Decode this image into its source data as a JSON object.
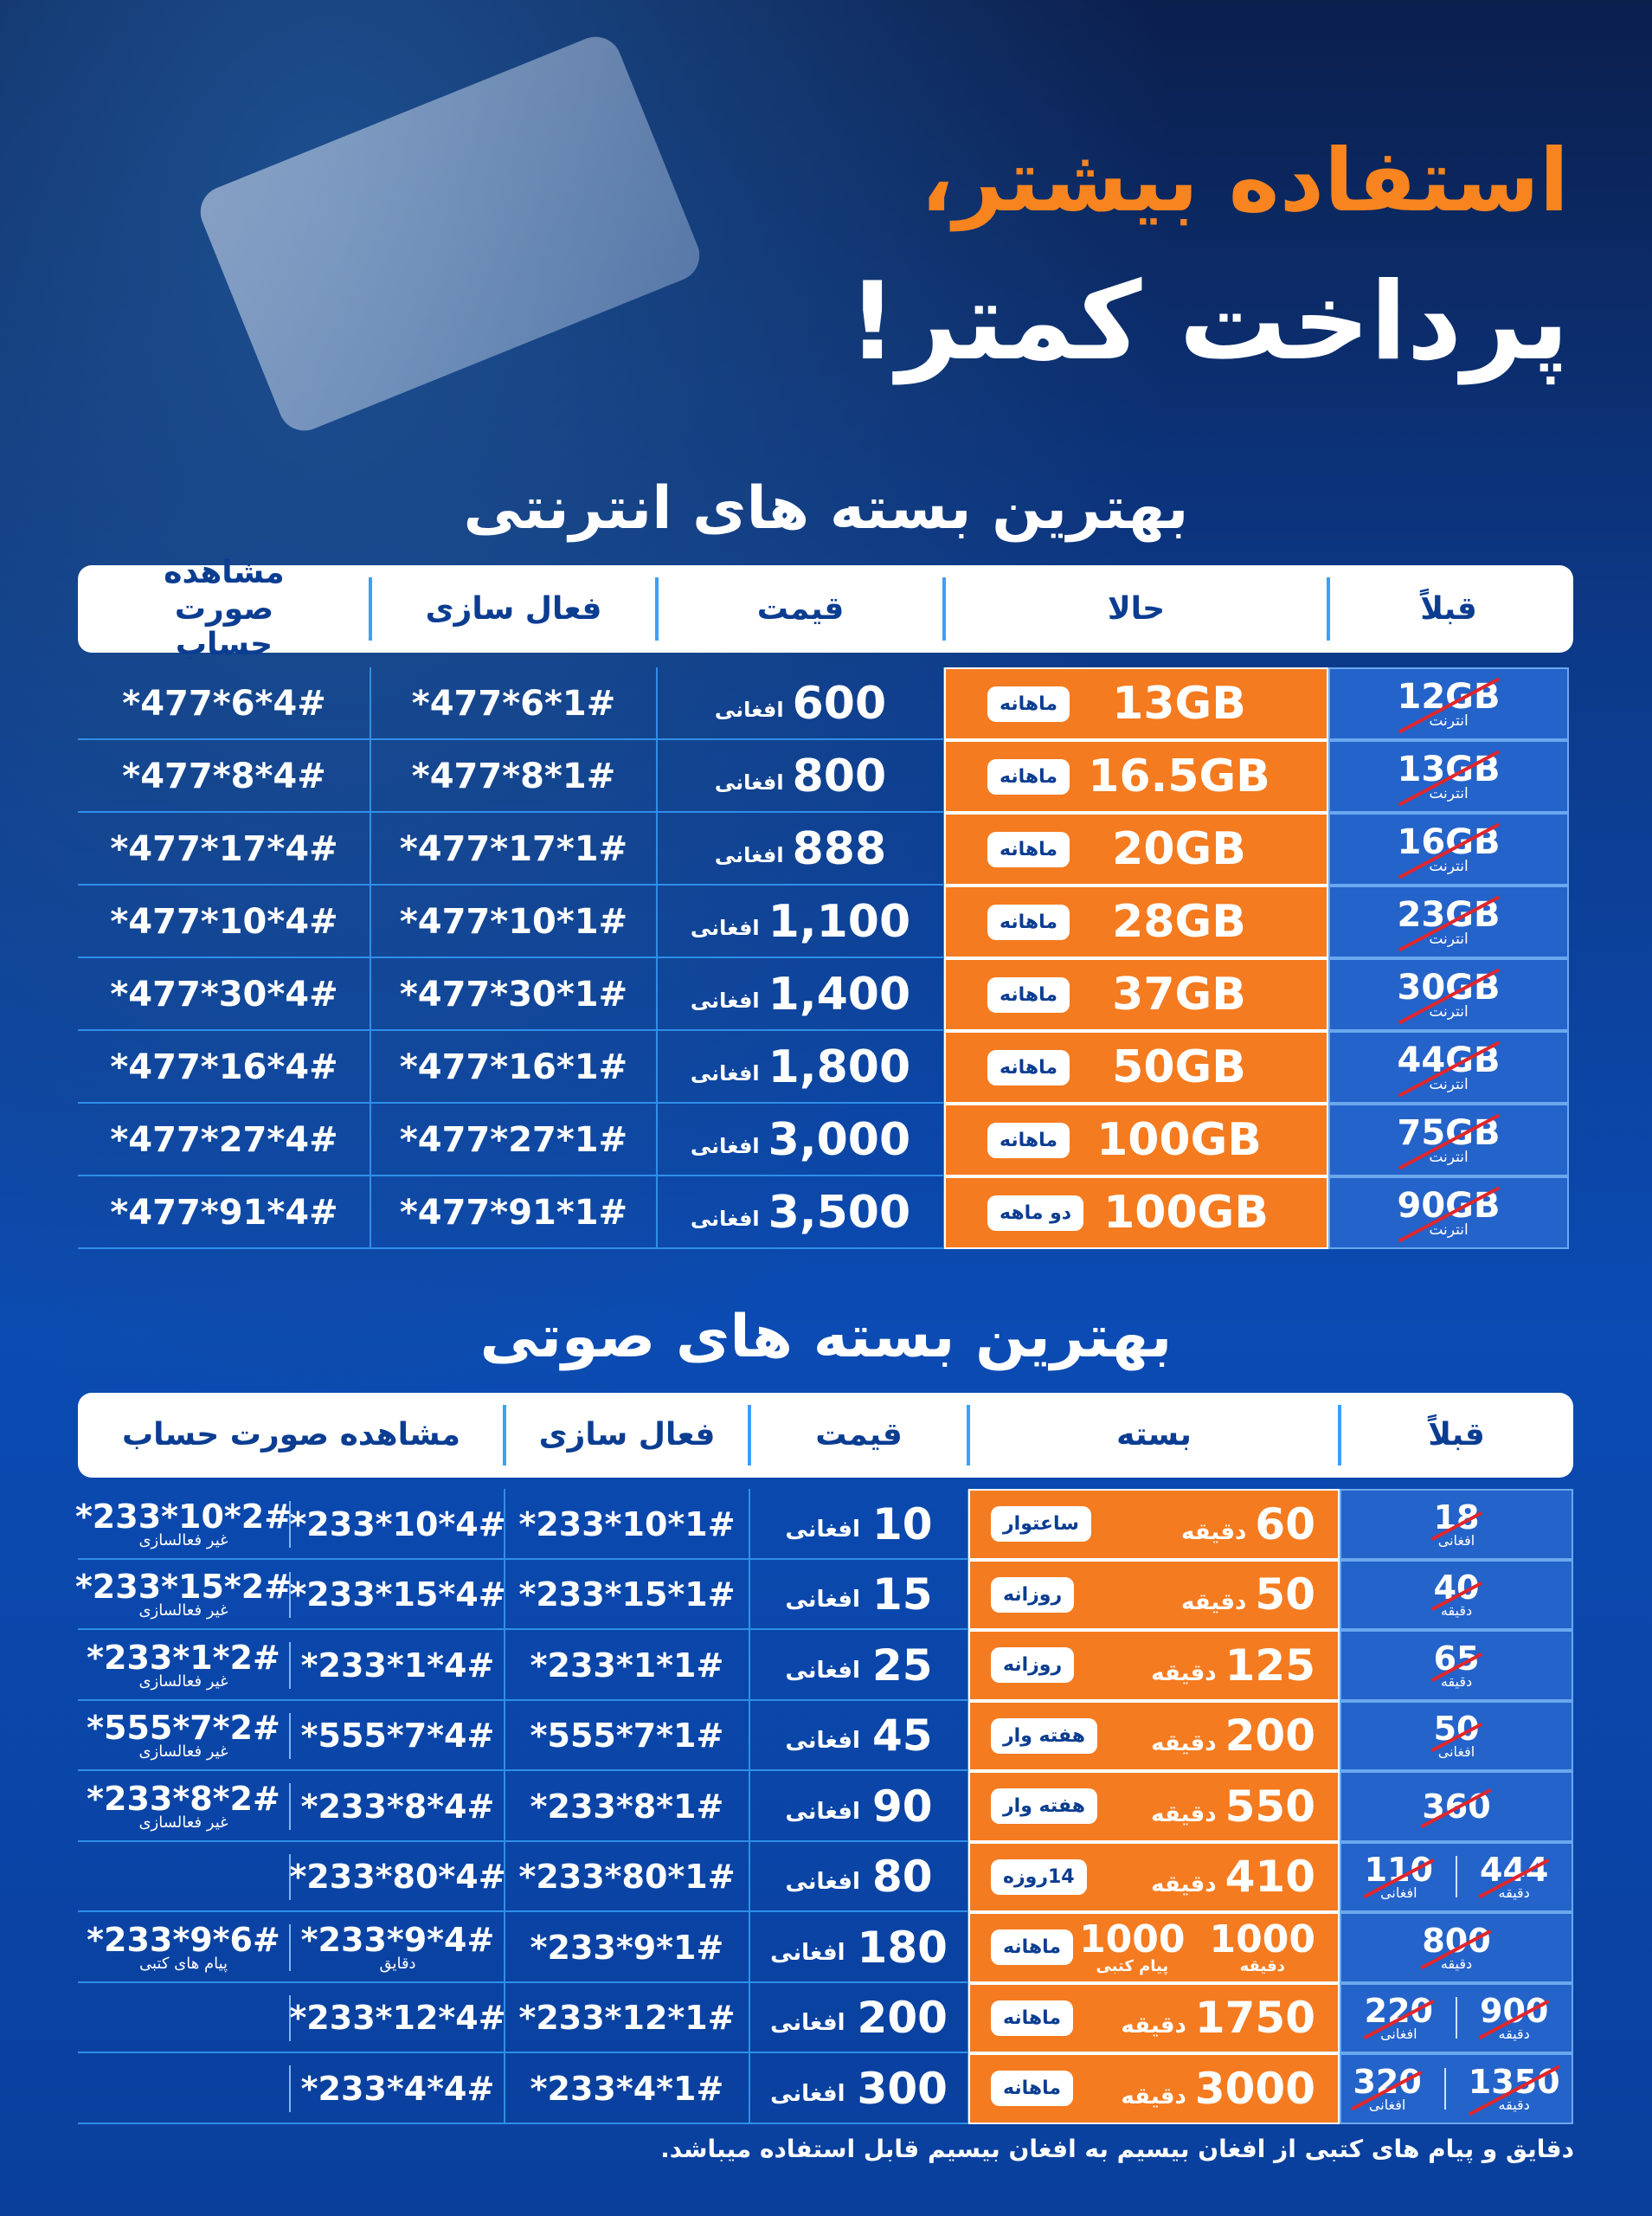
{
  "header": {
    "title_line1": "استفاده بیشتر،",
    "title_line2": "پرداخت کمتر!"
  },
  "internet": {
    "title": "بهترین بسته های انترنتی",
    "columns": [
      "قبلاً",
      "حالا",
      "قیمت",
      "فعال سازی",
      "مشاهده صورت حساب"
    ],
    "rows": [
      {
        "before": "12GB",
        "before_note": "انترنت",
        "now": "13GB",
        "period": "ماهانه",
        "price": "600",
        "currency": "افغانی",
        "activate": "*477*6*1#",
        "balance": "*477*6*4#"
      },
      {
        "before": "13GB",
        "before_note": "انترنت",
        "now": "16.5GB",
        "period": "ماهانه",
        "price": "800",
        "currency": "افغانی",
        "activate": "*477*8*1#",
        "balance": "*477*8*4#"
      },
      {
        "before": "16GB",
        "before_note": "انترنت",
        "now": "20GB",
        "period": "ماهانه",
        "price": "888",
        "currency": "افغانی",
        "activate": "*477*17*1#",
        "balance": "*477*17*4#"
      },
      {
        "before": "23GB",
        "before_note": "انترنت",
        "now": "28GB",
        "period": "ماهانه",
        "price": "1,100",
        "currency": "افغانی",
        "activate": "*477*10*1#",
        "balance": "*477*10*4#"
      },
      {
        "before": "30GB",
        "before_note": "انترنت",
        "now": "37GB",
        "period": "ماهانه",
        "price": "1,400",
        "currency": "افغانی",
        "activate": "*477*30*1#",
        "balance": "*477*30*4#"
      },
      {
        "before": "44GB",
        "before_note": "انترنت",
        "now": "50GB",
        "period": "ماهانه",
        "price": "1,800",
        "currency": "افغانی",
        "activate": "*477*16*1#",
        "balance": "*477*16*4#"
      },
      {
        "before": "75GB",
        "before_note": "انترنت",
        "now": "100GB",
        "period": "ماهانه",
        "price": "3,000",
        "currency": "افغانی",
        "activate": "*477*27*1#",
        "balance": "*477*27*4#"
      },
      {
        "before": "90GB",
        "before_note": "انترنت",
        "now": "100GB",
        "period": "دو ماهه",
        "price": "3,500",
        "currency": "افغانی",
        "activate": "*477*91*1#",
        "balance": "*477*91*4#"
      }
    ]
  },
  "voice": {
    "title": "بهترین بسته های صوتی",
    "columns": [
      "قبلاً",
      "بسته",
      "قیمت",
      "فعال سازی",
      "مشاهده صورت حساب"
    ],
    "rows": [
      {
        "before": [
          {
            "value": "18",
            "unit": "افغانی"
          }
        ],
        "package": [
          {
            "value": "60",
            "unit": "دقیقه"
          }
        ],
        "period": "ساعتوار",
        "price": "10",
        "currency": "افغانی",
        "activate": "*233*10*1#",
        "balance": {
          "code": "*233*10*4#"
        },
        "extra": {
          "code": "*233*10*2#",
          "note": "غیر فعالسازی"
        }
      },
      {
        "before": [
          {
            "value": "40",
            "unit": "دقیقه"
          }
        ],
        "package": [
          {
            "value": "50",
            "unit": "دقیقه"
          }
        ],
        "period": "روزانه",
        "price": "15",
        "currency": "افغانی",
        "activate": "*233*15*1#",
        "balance": {
          "code": "*233*15*4#"
        },
        "extra": {
          "code": "*233*15*2#",
          "note": "غیر فعالسازی"
        }
      },
      {
        "before": [
          {
            "value": "65",
            "unit": "دقیقه"
          }
        ],
        "package": [
          {
            "value": "125",
            "unit": "دقیقه"
          }
        ],
        "period": "روزانه",
        "price": "25",
        "currency": "افغانی",
        "activate": "*233*1*1#",
        "balance": {
          "code": "*233*1*4#"
        },
        "extra": {
          "code": "*233*1*2#",
          "note": "غیر فعالسازی"
        }
      },
      {
        "before": [
          {
            "value": "50",
            "unit": "افغانی"
          }
        ],
        "package": [
          {
            "value": "200",
            "unit": "دقیقه"
          }
        ],
        "period": "هفته وار",
        "price": "45",
        "currency": "افغانی",
        "activate": "*555*7*1#",
        "balance": {
          "code": "*555*7*4#"
        },
        "extra": {
          "code": "*555*7*2#",
          "note": "غیر فعالسازی"
        }
      },
      {
        "before": [
          {
            "value": "360"
          }
        ],
        "package": [
          {
            "value": "550",
            "unit": "دقیقه"
          }
        ],
        "period": "هفته وار",
        "price": "90",
        "currency": "افغانی",
        "activate": "*233*8*1#",
        "balance": {
          "code": "*233*8*4#"
        },
        "extra": {
          "code": "*233*8*2#",
          "note": "غیر فعالسازی"
        }
      },
      {
        "before": [
          {
            "value": "444",
            "unit": "دقیقه"
          },
          {
            "value": "110",
            "unit": "افغانی"
          }
        ],
        "package": [
          {
            "value": "410",
            "unit": "دقیقه"
          }
        ],
        "period": "14روزه",
        "price": "80",
        "currency": "افغانی",
        "activate": "*233*80*1#",
        "balance": {
          "code": "*233*80*4#"
        }
      },
      {
        "before": [
          {
            "value": "800",
            "unit": "دقیقه"
          }
        ],
        "package": [
          {
            "value": "1000",
            "unit": "دقیقه"
          },
          {
            "value": "1000",
            "unit": "پیام کتبی"
          }
        ],
        "period": "ماهانه",
        "price": "180",
        "currency": "افغانی",
        "activate": "*233*9*1#",
        "balance": {
          "code": "*233*9*4#",
          "note": "دقایق"
        },
        "extra": {
          "code": "*233*9*6#",
          "note": "پیام های کتبی"
        }
      },
      {
        "before": [
          {
            "value": "900",
            "unit": "دقیقه"
          },
          {
            "value": "220",
            "unit": "افغانی"
          }
        ],
        "package": [
          {
            "value": "1750",
            "unit": "دقیقه"
          }
        ],
        "period": "ماهانه",
        "price": "200",
        "currency": "افغانی",
        "activate": "*233*12*1#",
        "balance": {
          "code": "*233*12*4#"
        }
      },
      {
        "before": [
          {
            "value": "1350",
            "unit": "دقیقه"
          },
          {
            "value": "320",
            "unit": "افغانی"
          }
        ],
        "package": [
          {
            "value": "3000",
            "unit": "دقیقه"
          }
        ],
        "period": "ماهانه",
        "price": "300",
        "currency": "افغانی",
        "activate": "*233*4*1#",
        "balance": {
          "code": "*233*4*4#"
        }
      }
    ]
  },
  "footnote": "دقایق و پیام های کتبی از افغان بیسیم به افغان بیسیم قابل استفاده میباشد."
}
